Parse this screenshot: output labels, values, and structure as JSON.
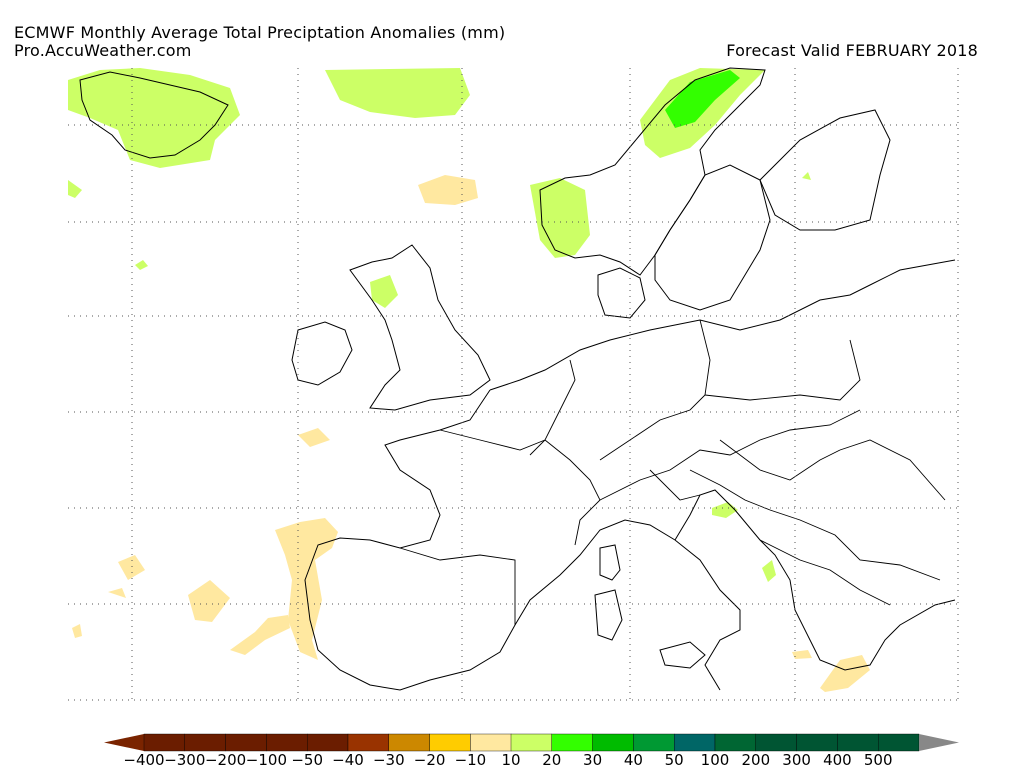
{
  "header": {
    "title": "ECMWF Monthly Average Total Preciptation Anomalies (mm)",
    "source": "Pro.AccuWeather.com",
    "valid": "Forecast Valid FEBRUARY 2018"
  },
  "legend": {
    "negative": {
      "colors": [
        "#6b1d00",
        "#6b1d00",
        "#6b1d00",
        "#6b1d00",
        "#6b1d00",
        "#993300",
        "#cc8800",
        "#ffcc00",
        "#ffe8a0"
      ],
      "labels": [
        "-400",
        "-300",
        "-200",
        "-100",
        "-50",
        "-40",
        "-30",
        "-20",
        "-10"
      ],
      "arrow_color": "#7a2400"
    },
    "positive": {
      "colors": [
        "#ccff66",
        "#33ff00",
        "#00bb00",
        "#009933",
        "#006666",
        "#006633",
        "#005533",
        "#005533",
        "#005533",
        "#005533"
      ],
      "labels": [
        "10",
        "20",
        "30",
        "40",
        "50",
        "100",
        "200",
        "300",
        "400",
        "500"
      ],
      "arrow_color": "#888888"
    }
  },
  "colors": {
    "light_green": "#ccff66",
    "green": "#33ff00",
    "tan": "#ffe8a0",
    "outline": "#000000",
    "grid": "#555555"
  }
}
